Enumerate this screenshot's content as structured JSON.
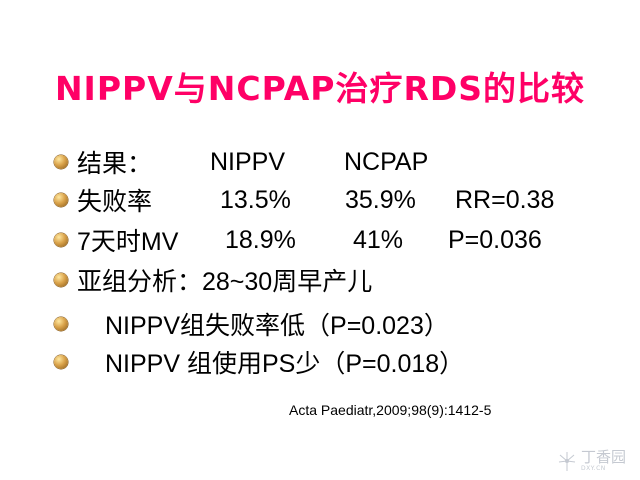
{
  "title": "NIPPV与NCPAP治疗RDS的比较",
  "rows": [
    {
      "cells": [
        "结果：",
        "NIPPV",
        "NCPAP"
      ]
    },
    {
      "cells": [
        "失败率",
        "13.5%",
        "35.9%",
        "RR=0.38"
      ]
    },
    {
      "cells": [
        "7天时MV",
        "18.9%",
        "41%",
        "P=0.036"
      ]
    },
    {
      "cells": [
        "亚组分析：28~30周早产儿"
      ]
    },
    {
      "cells": [
        "NIPPV组失败率低（P=0.023）"
      ]
    },
    {
      "cells": [
        "NIPPV 组使用PS少（P=0.018）"
      ]
    }
  ],
  "citation": "Acta Paediatr,2009;98(9):1412-5",
  "watermark": {
    "text": "丁香园",
    "sub": "DXY.CN"
  }
}
